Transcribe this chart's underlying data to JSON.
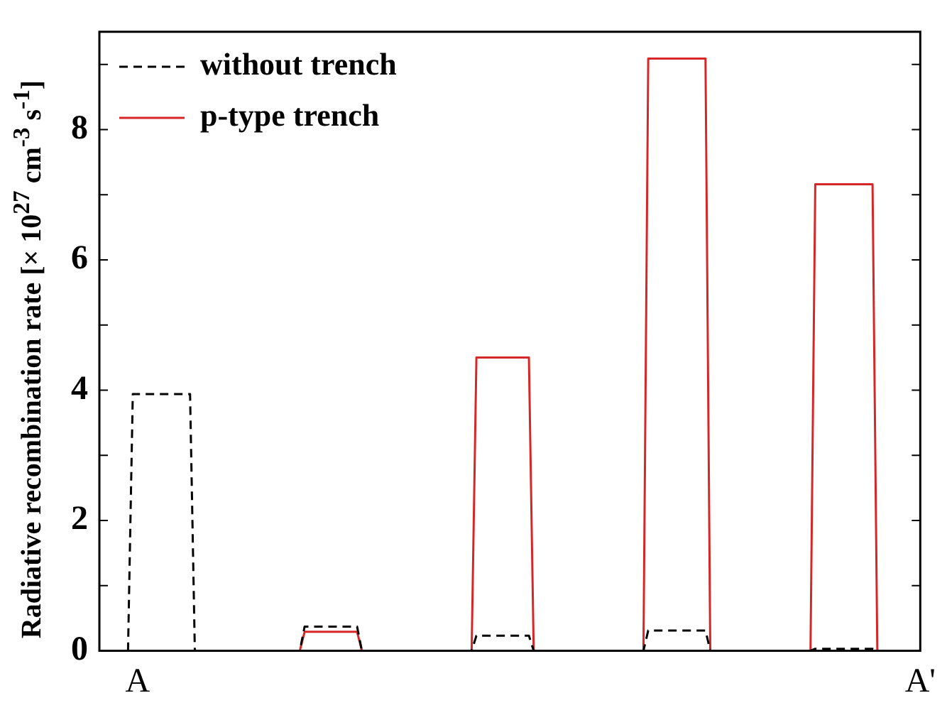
{
  "chart_data": {
    "type": "line",
    "ylabel": "Radiative recombination rate [× 10$^{27}$ cm$^{-3}$ s$^{-1}$]",
    "categories": [
      null,
      null,
      null,
      null,
      null,
      null,
      null,
      null,
      "A",
      null,
      null,
      null,
      null,
      null,
      null,
      null,
      null,
      null,
      null,
      null,
      null,
      null,
      null,
      null,
      null,
      null,
      null,
      null,
      null,
      null,
      null,
      null,
      null,
      null,
      null,
      null,
      null,
      null,
      null,
      null,
      null,
      null,
      null,
      null,
      null,
      null,
      null,
      null,
      null,
      null,
      null,
      null,
      null,
      null,
      null,
      null,
      null,
      null,
      null,
      null,
      null,
      null,
      null,
      null,
      null,
      null,
      null,
      null,
      null,
      null,
      null,
      null,
      null,
      null,
      null,
      null,
      null,
      null,
      null,
      null,
      null,
      null,
      null,
      null,
      null,
      null,
      null,
      null,
      null,
      null,
      null,
      null,
      null,
      null,
      null,
      null,
      null,
      null,
      null,
      null,
      null,
      null,
      null,
      null,
      null,
      null,
      null,
      null,
      null,
      null,
      null,
      null,
      null,
      null,
      null,
      null,
      null,
      null,
      null,
      null,
      null,
      null,
      null,
      null,
      null,
      null,
      null,
      null,
      null,
      null,
      null,
      null,
      null,
      null,
      null,
      null,
      null,
      null,
      null,
      null,
      null,
      null,
      null,
      null,
      null,
      null,
      null,
      null,
      null,
      null,
      null,
      null,
      null,
      null,
      null,
      null,
      null,
      null,
      null,
      null,
      null,
      null,
      null,
      null,
      null,
      null,
      null,
      null,
      null,
      null,
      null,
      null,
      "A'"
    ],
    "ylim": [
      0,
      9.5
    ],
    "yticks": [
      0,
      {
        "value": 1,
        "label": null
      },
      2,
      {
        "value": 3,
        "label": null
      },
      4,
      {
        "value": 5,
        "label": null
      },
      6,
      {
        "value": 7,
        "label": null
      },
      8,
      {
        "value": 9,
        "label": null
      }
    ],
    "grid": false,
    "legend": "top left",
    "marker": "none",
    "series": [
      {
        "name": "without trench",
        "color": "#000000",
        "line_style": "dashed",
        "values": [
          0,
          0,
          0,
          0,
          0,
          0,
          0,
          3.94,
          3.94,
          3.94,
          3.94,
          3.94,
          3.94,
          3.94,
          3.94,
          3.94,
          3.94,
          3.94,
          3.94,
          3.94,
          0,
          0,
          0,
          0,
          0,
          0,
          0,
          0,
          0,
          0,
          0,
          0,
          0,
          0,
          0,
          0,
          0,
          0,
          0,
          0,
          0,
          0,
          0,
          0.37,
          0.37,
          0.37,
          0.37,
          0.37,
          0.37,
          0.37,
          0.37,
          0.37,
          0.37,
          0.37,
          0.37,
          0,
          0,
          0,
          0,
          0,
          0,
          0,
          0,
          0,
          0,
          0,
          0,
          0,
          0,
          0,
          0,
          0,
          0,
          0,
          0,
          0,
          0,
          0,
          0,
          0.23,
          0.23,
          0.23,
          0.23,
          0.23,
          0.23,
          0.23,
          0.23,
          0.23,
          0.23,
          0.23,
          0.23,
          0,
          0,
          0,
          0,
          0,
          0,
          0,
          0,
          0,
          0,
          0,
          0,
          0,
          0,
          0,
          0,
          0,
          0,
          0,
          0,
          0,
          0,
          0,
          0,
          0.31,
          0.31,
          0.31,
          0.31,
          0.31,
          0.31,
          0.31,
          0.31,
          0.31,
          0.31,
          0.31,
          0.31,
          0.31,
          0,
          0,
          0,
          0,
          0,
          0,
          0,
          0,
          0,
          0,
          0,
          0,
          0,
          0,
          0,
          0,
          0,
          0,
          0,
          0,
          0,
          0,
          0.03,
          0.03,
          0.03,
          0.03,
          0.03,
          0.03,
          0.03,
          0.03,
          0.03,
          0.03,
          0.03,
          0.03,
          0.03,
          0,
          0,
          0,
          0,
          0,
          0,
          0,
          0,
          0,
          0
        ]
      },
      {
        "name": "p-type trench",
        "color": "#d62728",
        "line_style": "solid",
        "values": [
          null,
          null,
          null,
          null,
          null,
          null,
          null,
          null,
          null,
          null,
          null,
          null,
          null,
          null,
          null,
          null,
          null,
          null,
          null,
          null,
          null,
          null,
          null,
          null,
          null,
          null,
          null,
          null,
          null,
          null,
          null,
          null,
          null,
          null,
          null,
          null,
          null,
          null,
          null,
          null,
          null,
          null,
          0,
          0.29,
          0.29,
          0.29,
          0.29,
          0.29,
          0.29,
          0.29,
          0.29,
          0.29,
          0.29,
          0.29,
          0.29,
          0,
          0,
          0,
          0,
          0,
          0,
          0,
          0,
          0,
          0,
          0,
          0,
          0,
          0,
          0,
          0,
          0,
          0,
          0,
          0,
          0,
          0,
          0,
          0,
          4.5,
          4.5,
          4.5,
          4.5,
          4.5,
          4.5,
          4.5,
          4.5,
          4.5,
          4.5,
          4.5,
          4.5,
          0,
          0,
          0,
          0,
          0,
          0,
          0,
          0,
          0,
          0,
          0,
          0,
          0,
          0,
          0,
          0,
          0,
          0,
          0,
          0,
          0,
          0,
          0,
          0,
          9.09,
          9.09,
          9.09,
          9.09,
          9.09,
          9.09,
          9.09,
          9.09,
          9.09,
          9.09,
          9.09,
          9.09,
          9.09,
          0,
          0,
          0,
          0,
          0,
          0,
          0,
          0,
          0,
          0,
          0,
          0,
          0,
          0,
          0,
          0,
          0,
          0,
          0,
          0,
          0,
          0,
          7.16,
          7.16,
          7.16,
          7.16,
          7.16,
          7.16,
          7.16,
          7.16,
          7.16,
          7.16,
          7.16,
          7.16,
          7.16,
          0,
          null,
          null,
          null,
          null,
          null,
          null,
          null,
          null,
          null
        ]
      }
    ]
  }
}
